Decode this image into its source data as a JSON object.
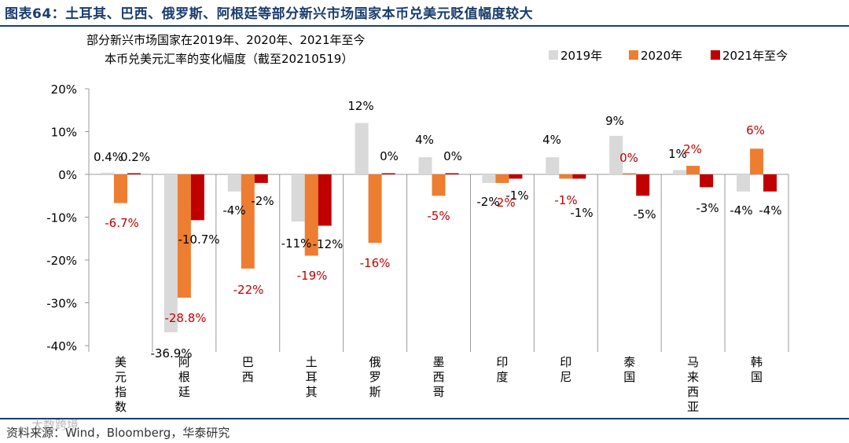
{
  "header": {
    "figure_label": "图表64：",
    "figure_title": "土耳其、巴西、俄罗斯、阿根廷等部分新兴市场国家本币兑美元贬值幅度较大"
  },
  "source_text": "资料来源：Wind，Bloomberg，华泰研究",
  "watermark_text": "大数跨境",
  "chart_data": {
    "type": "bar",
    "title_lines": [
      "部分新兴市场国家在2019年、2020年、2021年至今",
      "本币兑美元汇率的变化幅度（截至20210519）"
    ],
    "categories": [
      "美元指数",
      "阿根廷",
      "巴西",
      "土耳其",
      "俄罗斯",
      "墨西哥",
      "印度",
      "印尼",
      "泰国",
      "马来西亚",
      "韩国"
    ],
    "series": [
      {
        "name": "2019年",
        "color": "#d9d9d9",
        "values": [
          0.4,
          -36.9,
          -4,
          -11,
          12,
          4,
          -2,
          4,
          9,
          1,
          -4
        ],
        "labels": [
          "0.4%",
          "-36.9%",
          "-4%",
          "-11%",
          "12%",
          "4%",
          "-2%",
          "4%",
          "9%",
          "1%",
          "-4%"
        ]
      },
      {
        "name": "2020年",
        "color": "#ed7d31",
        "values": [
          -6.7,
          -28.8,
          -22,
          -19,
          -16,
          -5,
          -2,
          -1,
          0,
          2,
          6
        ],
        "labels": [
          "-6.7%",
          "-28.8%",
          "-22%",
          "-19%",
          "-16%",
          "-5%",
          "-2%",
          "-1%",
          "0%",
          "2%",
          "6%"
        ]
      },
      {
        "name": "2021年至今",
        "color": "#c00000",
        "values": [
          0.2,
          -10.7,
          -2,
          -12,
          0,
          0,
          -1,
          -1,
          -5,
          -3,
          -4
        ],
        "labels": [
          "0.2%",
          "-10.7%",
          "-2%",
          "-12%",
          "0%",
          "0%",
          "-1%",
          "-1%",
          "-5%",
          "-3%",
          "-4%"
        ]
      }
    ],
    "ylim": [
      -40,
      20
    ],
    "yticks": [
      20,
      10,
      0,
      -10,
      -20,
      -30,
      -40
    ],
    "ytick_labels": [
      "20%",
      "10%",
      "0%",
      "-10%",
      "-20%",
      "-30%",
      "-40%"
    ],
    "grid": false,
    "legend_position": "top-right",
    "label_colors": {
      "dark": "#000000",
      "red": "#c00000"
    }
  }
}
